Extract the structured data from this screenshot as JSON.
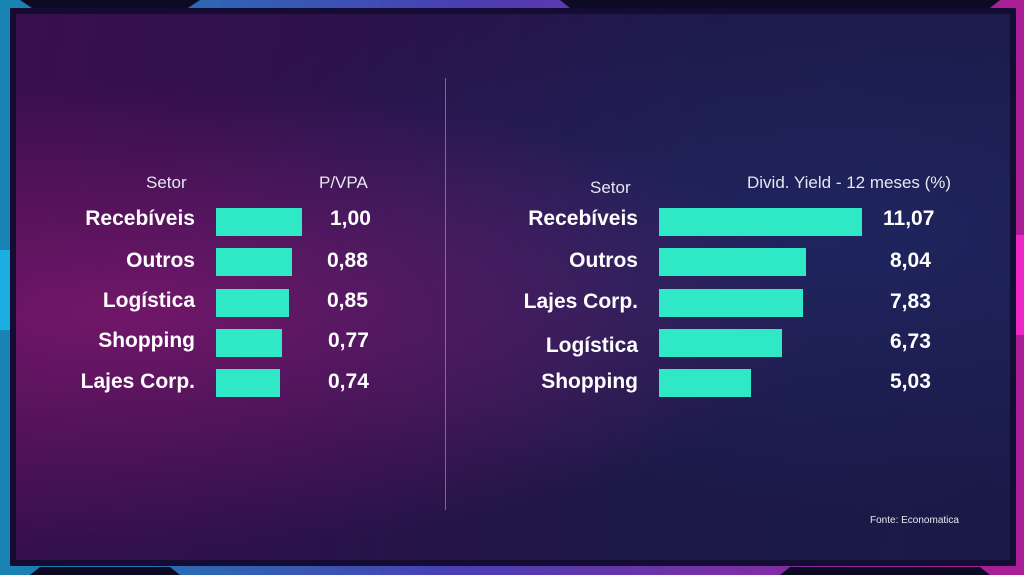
{
  "colors": {
    "bar": "#2ee8c6",
    "text": "#ffffff",
    "frame_cyan": "#1ec8ff",
    "frame_magenta": "#ff2bd0"
  },
  "chart_data": [
    {
      "type": "bar",
      "orientation": "horizontal",
      "category_header": "Setor",
      "value_header": "P/VPA",
      "categories": [
        "Recebíveis",
        "Outros",
        "Logística",
        "Shopping",
        "Lajes Corp."
      ],
      "values": [
        1.0,
        0.88,
        0.85,
        0.77,
        0.74
      ],
      "value_labels": [
        "1,00",
        "0,88",
        "0,85",
        "0,77",
        "0,74"
      ]
    },
    {
      "type": "bar",
      "orientation": "horizontal",
      "category_header": "Setor",
      "value_header": "Divid. Yield - 12 meses (%)",
      "categories": [
        "Recebíveis",
        "Outros",
        "Lajes Corp.",
        "Logística",
        "Shopping"
      ],
      "values": [
        11.07,
        8.04,
        7.83,
        6.73,
        5.03
      ],
      "value_labels": [
        "11,07",
        "8,04",
        "7,83",
        "6,73",
        "5,03"
      ]
    }
  ],
  "source": "Fonte: Economatica"
}
